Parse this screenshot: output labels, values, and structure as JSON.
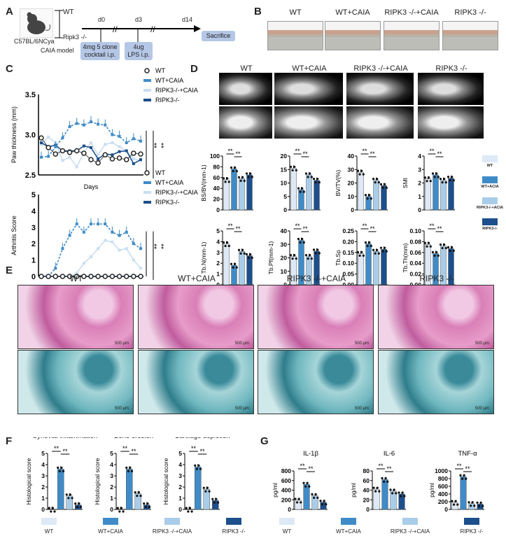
{
  "colors": {
    "wt": "#dde9f6",
    "wt_caia": "#3f8bc7",
    "ripk3_caia": "#a9cde9",
    "ripk3": "#1c4f8c",
    "black": "#111111"
  },
  "panelA": {
    "label": "A",
    "strain": "C57BL/6NCya",
    "groups": [
      "WT",
      "Ripk3 -/-"
    ],
    "model": "CAIA model",
    "days": [
      "d0",
      "d3",
      "d14"
    ],
    "steps": [
      "4mg 5 clone cocktail i.p.",
      "4ug LPS i.p."
    ],
    "endpoint": "Sacrifice"
  },
  "panelB": {
    "label": "B",
    "titles": [
      "WT",
      "WT+CAIA",
      "RIPK3 -/-+CAIA",
      "RIPK3 -/-"
    ]
  },
  "panelD": {
    "label": "D",
    "titles": [
      "WT",
      "WT+CAIA",
      "RIPK3 -/-+CAIA",
      "RIPK3 -/-"
    ],
    "legend": [
      "WT",
      "WT+ACIA",
      "RIPK3-/-+ACIA",
      "RIPK3-/-"
    ]
  },
  "panelE": {
    "label": "E",
    "titles": [
      "WT",
      "WT+CAIA",
      "RIPK3 -/-+CAIA",
      "RIPK3 -/-"
    ],
    "scale_bar": "500 μm"
  },
  "panelF": {
    "label": "F",
    "legend": [
      "WT",
      "WT+CAIA",
      "RIPK3 -/-+CAIA",
      "RIPK3 -/-"
    ]
  },
  "panelG": {
    "label": "G",
    "legend": [
      "WT",
      "WT+CAIA",
      "RIPK3 -/-+CAIA",
      "RIPK3 -/-"
    ]
  },
  "panelC": {
    "label": "C"
  },
  "chart_data": [
    {
      "id": "paw",
      "type": "line",
      "xlabel": "Days",
      "ylabel": "Paw thickness (mm)",
      "ylim": [
        2.5,
        3.5
      ],
      "yticks": [
        "2.5",
        "3.0",
        "3.5"
      ],
      "legend": [
        "WT",
        "WT+CAIA",
        "RIPK3-/-+CAIA",
        "RIPK3-/-"
      ],
      "sig": [
        "**",
        "**"
      ],
      "series": [
        {
          "name": "WT",
          "values": [
            2.96,
            2.84,
            2.76,
            2.8,
            2.78,
            2.8,
            2.77,
            2.69,
            2.65,
            2.75,
            2.7,
            2.71,
            2.69,
            2.77,
            2.76
          ]
        },
        {
          "name": "WT+CAIA",
          "values": [
            2.72,
            2.73,
            2.85,
            2.96,
            3.1,
            3.14,
            3.12,
            3.16,
            3.13,
            3.12,
            3.0,
            2.98,
            2.9,
            2.95,
            2.92
          ]
        },
        {
          "name": "RIPK3-/-+CAIA",
          "values": [
            2.88,
            2.97,
            2.9,
            2.68,
            2.72,
            2.6,
            2.78,
            2.9,
            2.75,
            2.88,
            2.9,
            2.85,
            2.8,
            2.7,
            2.68
          ]
        },
        {
          "name": "RIPK3-/-",
          "values": [
            2.9,
            2.85,
            2.87,
            2.8,
            2.8,
            2.8,
            2.86,
            2.84,
            2.7,
            2.76,
            2.75,
            2.79,
            2.8,
            2.64,
            2.69
          ]
        }
      ]
    },
    {
      "id": "score",
      "type": "line",
      "xlabel": "Days",
      "ylabel": "Arthritis Score",
      "ylim": [
        0,
        5
      ],
      "yticks": [
        "0",
        "1",
        "2",
        "3",
        "4",
        "5"
      ],
      "legend": [
        "WT",
        "WT+CAIA",
        "RIPK3-/-+CAIA",
        "RIPK3-/-"
      ],
      "sig": [
        "**",
        "**"
      ],
      "series": [
        {
          "name": "WT",
          "values": [
            0,
            0,
            0,
            0,
            0,
            0,
            0,
            0,
            0,
            0,
            0,
            0,
            0,
            0,
            0
          ]
        },
        {
          "name": "WT+CAIA",
          "values": [
            0,
            0,
            0.5,
            1.7,
            2.5,
            3.2,
            2.7,
            3.2,
            3.2,
            3.2,
            2.7,
            2.5,
            2.7,
            2.0,
            1.7
          ]
        },
        {
          "name": "RIPK3-/-+CAIA",
          "values": [
            0,
            0,
            0,
            0,
            0,
            0.2,
            0.8,
            1.2,
            1.7,
            2.2,
            2.1,
            1.6,
            1.7,
            1.0,
            0.5
          ]
        },
        {
          "name": "RIPK3-/-",
          "values": [
            0,
            0,
            0,
            0,
            0,
            0,
            0,
            0,
            0,
            0,
            0,
            0,
            0,
            0,
            0
          ]
        }
      ]
    },
    {
      "id": "bsbv",
      "type": "bar",
      "ylabel": "BS/BV(mm-1)",
      "ylim": [
        0,
        100
      ],
      "yticks": [
        "0",
        "20",
        "40",
        "60",
        "80",
        "100"
      ],
      "values": [
        56,
        76,
        58,
        65
      ],
      "sig": [
        "**",
        "**"
      ]
    },
    {
      "id": "tbpf1",
      "type": "bar",
      "ylabel": "",
      "ylim": [
        0,
        20
      ],
      "yticks": [
        "0",
        "5",
        "10",
        "15",
        "20"
      ],
      "values": [
        15.5,
        7.5,
        13,
        11
      ],
      "sig": [
        "**",
        "**"
      ]
    },
    {
      "id": "bvtv",
      "type": "bar",
      "ylabel": "BV/TV(%)",
      "ylim": [
        0,
        40
      ],
      "yticks": [
        "0",
        "10",
        "20",
        "30",
        "40"
      ],
      "values": [
        28,
        10,
        22,
        18
      ],
      "sig": [
        "**",
        "**"
      ]
    },
    {
      "id": "smi",
      "type": "bar",
      "ylabel": "SMI",
      "ylim": [
        0,
        4
      ],
      "yticks": [
        "0",
        "1",
        "2",
        "3",
        "4"
      ],
      "values": [
        2.3,
        2.6,
        2.2,
        2.35
      ],
      "sig": [
        "**",
        "**"
      ]
    },
    {
      "id": "tbn",
      "type": "bar",
      "ylabel": "Tb.N(mm-1)",
      "ylim": [
        0,
        5
      ],
      "yticks": [
        "0",
        "1",
        "2",
        "3",
        "4",
        "5"
      ],
      "values": [
        3.8,
        1.8,
        3.1,
        2.7
      ],
      "sig": [
        "**",
        "**"
      ]
    },
    {
      "id": "tbpf",
      "type": "bar",
      "ylabel": "Tb.Pf(mm-1)",
      "ylim": [
        0,
        40
      ],
      "yticks": [
        "0",
        "10",
        "20",
        "30",
        "40"
      ],
      "values": [
        21,
        33,
        21,
        25
      ],
      "sig": [
        "**",
        "**"
      ]
    },
    {
      "id": "tbsp",
      "type": "bar",
      "ylabel": "Tb.Sp",
      "ylim": [
        0,
        0.25
      ],
      "yticks": [
        "0.00",
        "0.05",
        "0.10",
        "0.15",
        "0.20",
        "0.25"
      ],
      "values": [
        0.145,
        0.19,
        0.155,
        0.165
      ],
      "sig": [
        "**",
        "**"
      ]
    },
    {
      "id": "tbth",
      "type": "bar",
      "ylabel": "Tb.Th(mm)",
      "ylim": [
        0,
        0.1
      ],
      "yticks": [
        "0.00",
        "0.02",
        "0.04",
        "0.06",
        "0.08",
        "0.10"
      ],
      "values": [
        0.075,
        0.058,
        0.072,
        0.067
      ],
      "sig": [
        "**",
        "**"
      ]
    },
    {
      "id": "syn",
      "type": "bar",
      "title": "Synovial inflammation",
      "ylabel": "Histological score",
      "ylim": [
        0,
        5
      ],
      "yticks": [
        "0",
        "1",
        "2",
        "3",
        "4",
        "5"
      ],
      "values": [
        0,
        3.6,
        1.2,
        0.4
      ],
      "sig": [
        "**",
        "**"
      ]
    },
    {
      "id": "bone",
      "type": "bar",
      "title": "Bone erosion",
      "ylabel": "Histological score",
      "ylim": [
        0,
        5
      ],
      "yticks": [
        "0",
        "1",
        "2",
        "3",
        "4",
        "5"
      ],
      "values": [
        0,
        3.6,
        1.4,
        0.4
      ],
      "sig": [
        "**",
        "**"
      ]
    },
    {
      "id": "cart",
      "type": "bar",
      "title": "Cartilage depletion",
      "ylabel": "Histological score",
      "ylim": [
        0,
        5
      ],
      "yticks": [
        "0",
        "1",
        "2",
        "3",
        "4",
        "5"
      ],
      "values": [
        0,
        3.8,
        1.8,
        0.8
      ],
      "sig": [
        "**",
        "**"
      ]
    },
    {
      "id": "il1b",
      "type": "bar",
      "title": "IL-1β",
      "ylabel": "pg/ml",
      "ylim": [
        0,
        800
      ],
      "yticks": [
        "0",
        "200",
        "400",
        "600",
        "800"
      ],
      "values": [
        190,
        520,
        285,
        150
      ],
      "sig": [
        "**",
        "**"
      ]
    },
    {
      "id": "il6",
      "type": "bar",
      "title": "IL-6",
      "ylabel": "pg/ml",
      "ylim": [
        0,
        80
      ],
      "yticks": [
        "0",
        "20",
        "40",
        "60",
        "80"
      ],
      "values": [
        42,
        62,
        38,
        32
      ],
      "sig": [
        "**",
        "**"
      ]
    },
    {
      "id": "tnfa",
      "type": "bar",
      "title": "TNF-α",
      "ylabel": "pg/ml",
      "ylim": [
        0,
        1000
      ],
      "yticks": [
        "0",
        "200",
        "400",
        "600",
        "800",
        "1000"
      ],
      "values": [
        180,
        850,
        150,
        140
      ],
      "sig": [
        "**",
        "**"
      ]
    }
  ]
}
